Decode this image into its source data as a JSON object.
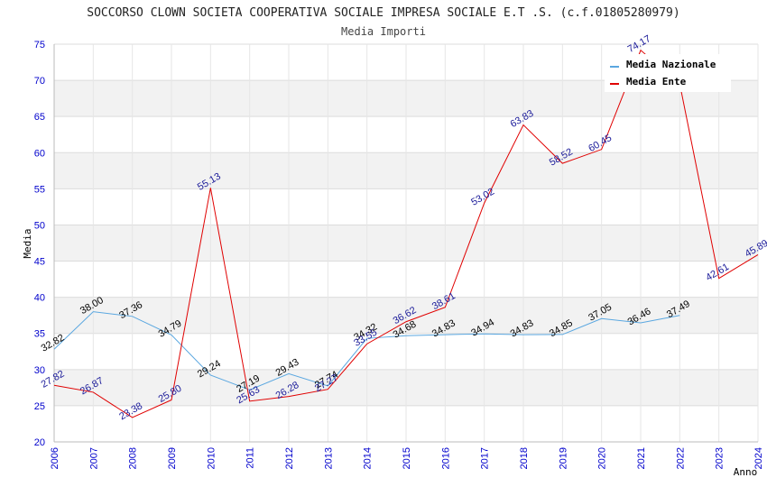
{
  "chart_data": {
    "type": "line",
    "title": "SOCCORSO CLOWN SOCIETA COOPERATIVA SOCIALE IMPRESA SOCIALE E.T .S. (c.f.01805280979)",
    "subtitle": "Media Importi",
    "xlabel": "Anno",
    "ylabel": "Media",
    "ylim": [
      20,
      75
    ],
    "yticks": [
      20,
      25,
      30,
      35,
      40,
      45,
      50,
      55,
      60,
      65,
      70,
      75
    ],
    "categories": [
      "2006",
      "2007",
      "2008",
      "2009",
      "2010",
      "2011",
      "2012",
      "2013",
      "2014",
      "2015",
      "2016",
      "2017",
      "2018",
      "2019",
      "2020",
      "2021",
      "2022",
      "2023",
      "2024"
    ],
    "legend_position": "top-right",
    "series": [
      {
        "name": "Media Nazionale",
        "color": "#5aa7e0",
        "values": [
          32.82,
          38.0,
          37.36,
          34.79,
          29.24,
          27.19,
          29.43,
          27.74,
          34.32,
          34.68,
          34.83,
          34.94,
          34.83,
          34.85,
          37.05,
          36.46,
          37.49,
          null,
          null
        ],
        "labels": [
          "32.82",
          "38.00",
          "37.36",
          "34.79",
          "29.24",
          "27.19",
          "29.43",
          "27.74",
          "34.32",
          "34.68",
          "34.83",
          "34.94",
          "34.83",
          "34.85",
          "37.05",
          "36.46",
          "37.49",
          null,
          null
        ]
      },
      {
        "name": "Media Ente",
        "color": "#e00000",
        "values": [
          27.82,
          26.87,
          23.38,
          25.8,
          55.13,
          25.63,
          26.28,
          27.27,
          33.55,
          36.62,
          38.61,
          53.02,
          63.83,
          58.52,
          60.45,
          74.17,
          69.5,
          42.61,
          45.89
        ],
        "labels": [
          "27.82",
          "26.87",
          "23.38",
          "25.80",
          "55.13",
          "25.63",
          "26.28",
          "27.27",
          "33.55",
          "36.62",
          "38.61",
          "53.02",
          "63.83",
          "58.52",
          "60.45",
          "74.17",
          null,
          "42.61",
          "45.89"
        ]
      }
    ]
  }
}
